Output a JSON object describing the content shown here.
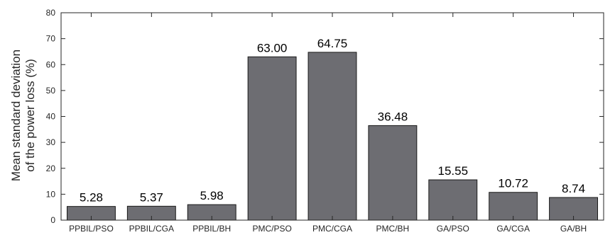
{
  "chart_data": {
    "type": "bar",
    "title": "",
    "xlabel": "",
    "ylabel_lines": [
      "Mean standard deviation",
      "of the power loss (%)"
    ],
    "categories": [
      "PPBIL/PSO",
      "PPBIL/CGA",
      "PPBIL/BH",
      "PMC/PSO",
      "PMC/CGA",
      "PMC/BH",
      "GA/PSO",
      "GA/CGA",
      "GA/BH"
    ],
    "values": [
      5.28,
      5.37,
      5.98,
      63.0,
      64.75,
      36.48,
      15.55,
      10.72,
      8.74
    ],
    "value_labels": [
      "5.28",
      "5.37",
      "5.98",
      "63.00",
      "64.75",
      "36.48",
      "15.55",
      "10.72",
      "8.74"
    ],
    "ylim": [
      0,
      80
    ],
    "yticks": [
      0,
      10,
      20,
      30,
      40,
      50,
      60,
      70,
      80
    ],
    "grid": false,
    "bar_color": "#6d6d72"
  }
}
